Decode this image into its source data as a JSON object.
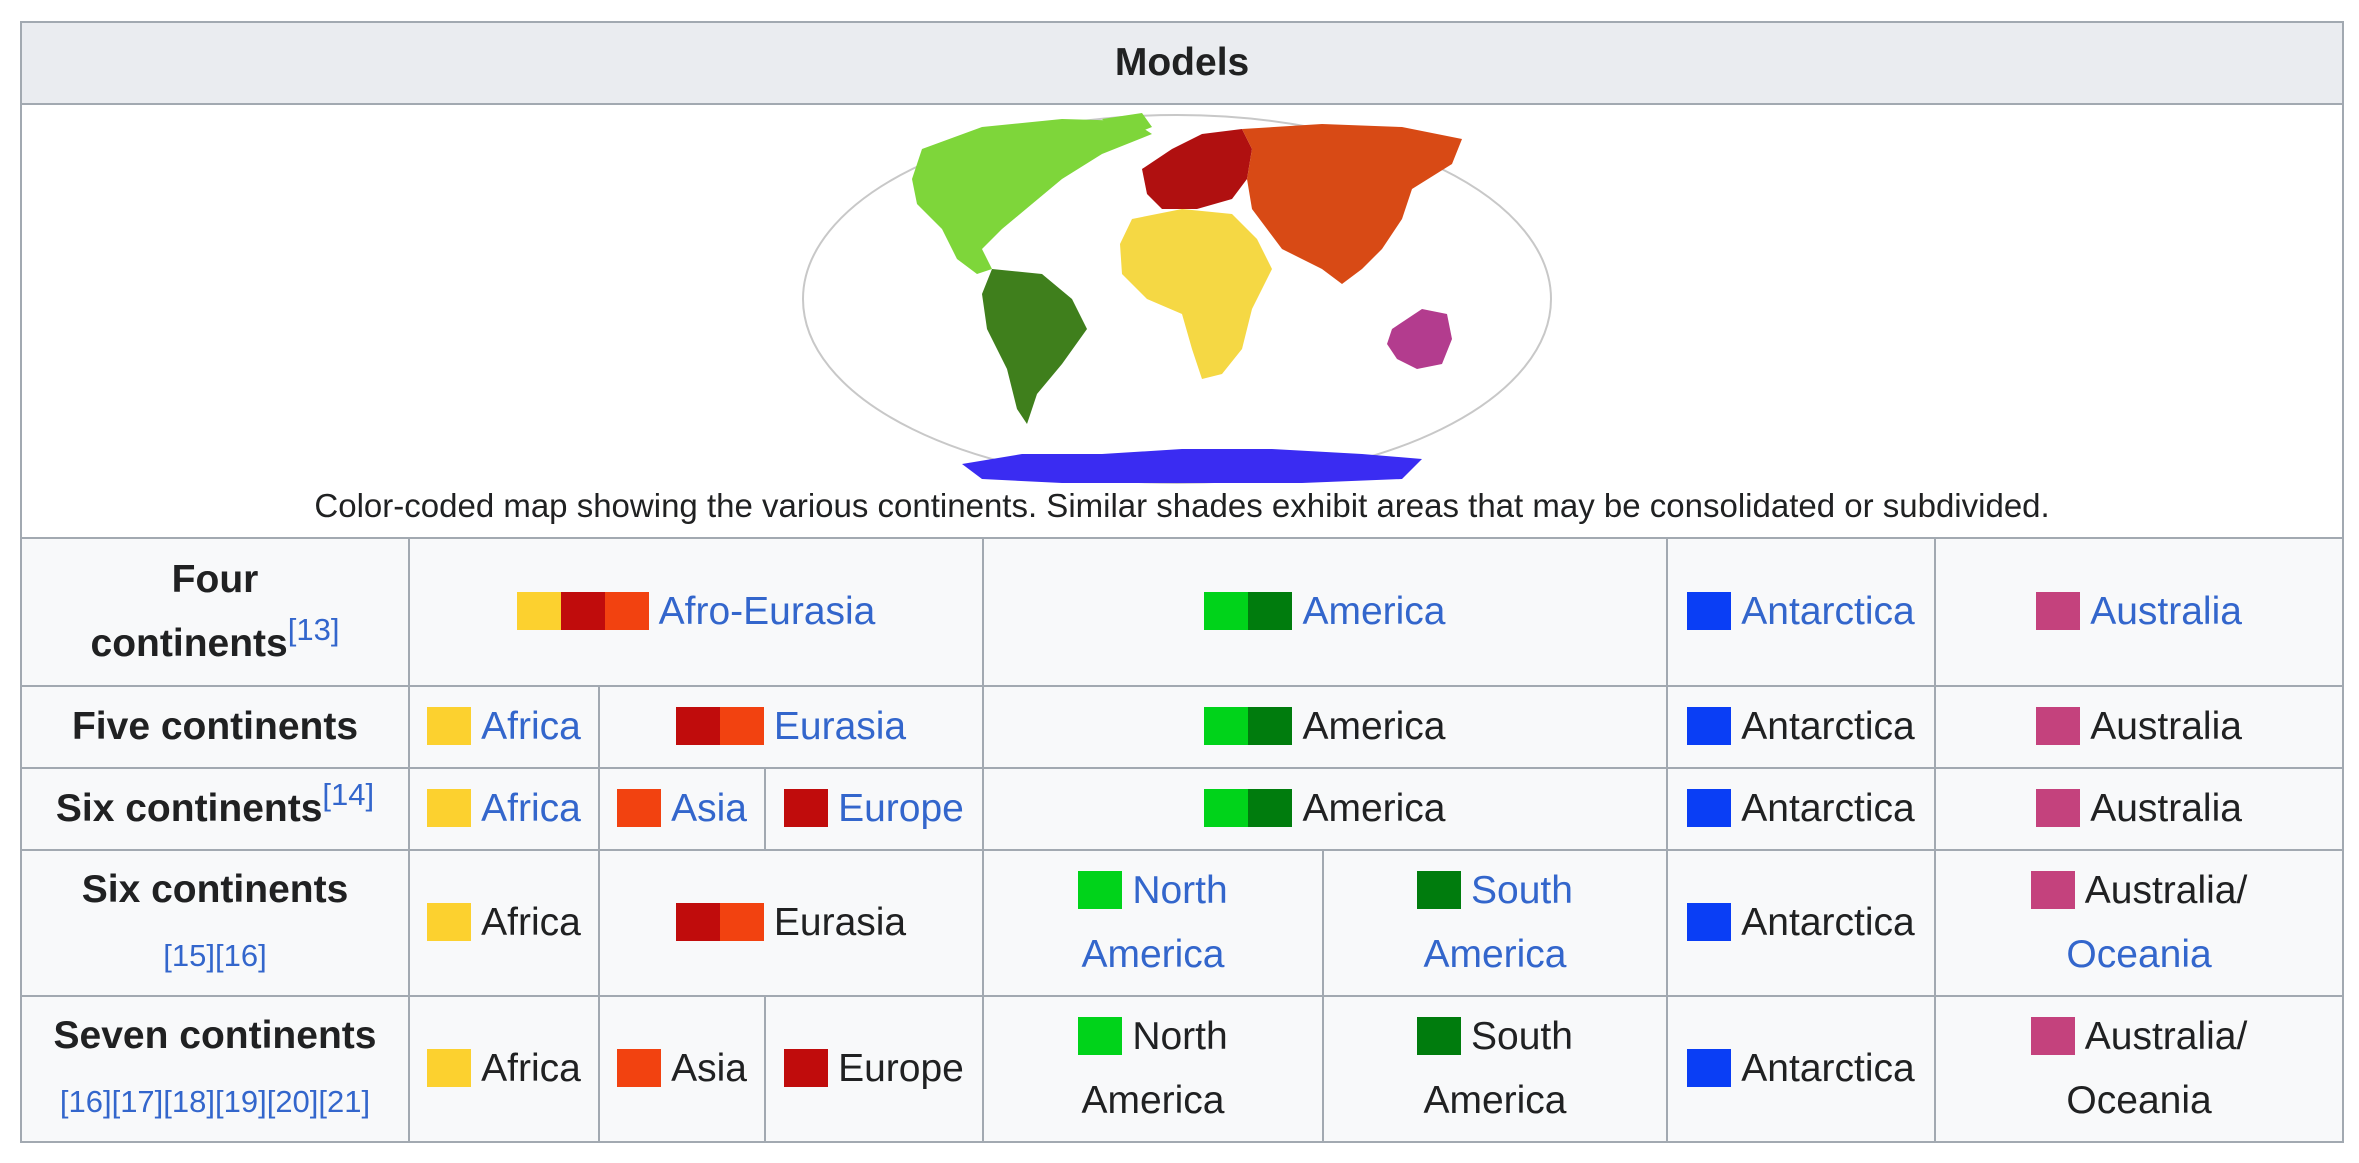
{
  "header": {
    "title": "Models"
  },
  "map": {
    "caption": "Color-coded map showing the various continents. Similar shades exhibit areas that may be consolidated or subdivided.",
    "colors": {
      "north_america": "#7ed63a",
      "south_america": "#3f7f1c",
      "africa": "#f5d844",
      "europe": "#b01010",
      "asia": "#d84a15",
      "australia": "#b33c8e",
      "antarctica": "#3a2cf2",
      "outline": "#c8c8c8"
    }
  },
  "swatch_colors": {
    "africa": "#fcd12f",
    "europe": "#c00c0c",
    "asia": "#f24210",
    "north_america": "#00d31a",
    "south_america": "#007c0d",
    "antarctica": "#0a3ef5",
    "australia": "#c4427d"
  },
  "rows": {
    "four": {
      "header": "Four continents",
      "header_line1": "Four",
      "header_line2": "continents",
      "ref": "[13]",
      "afro_eurasia": "Afro-Eurasia",
      "america": "America",
      "antarctica": "Antarctica",
      "australia": "Australia"
    },
    "five": {
      "header": "Five continents",
      "africa": "Africa",
      "eurasia": "Eurasia",
      "america": "America",
      "antarctica": "Antarctica",
      "australia": "Australia"
    },
    "six_a": {
      "header": "Six continents",
      "ref": "[14]",
      "africa": "Africa",
      "asia": "Asia",
      "europe": "Europe",
      "america": "America",
      "antarctica": "Antarctica",
      "australia": "Australia"
    },
    "six_b": {
      "header": "Six continents",
      "refs": "[15][16]",
      "africa": "Africa",
      "eurasia": "Eurasia",
      "north_line1": "North",
      "north_line2": "America",
      "south_line1": "South",
      "south_line2": "America",
      "antarctica": "Antarctica",
      "australia_line1": "Australia/",
      "australia_line2": "Oceania"
    },
    "seven": {
      "header": "Seven continents",
      "refs": "[16][17][18][19][20][21]",
      "africa": "Africa",
      "asia": "Asia",
      "europe": "Europe",
      "north_line1": "North",
      "north_line2": "America",
      "south_line1": "South",
      "south_line2": "America",
      "antarctica": "Antarctica",
      "australia_line1": "Australia/",
      "australia_line2": "Oceania"
    }
  }
}
